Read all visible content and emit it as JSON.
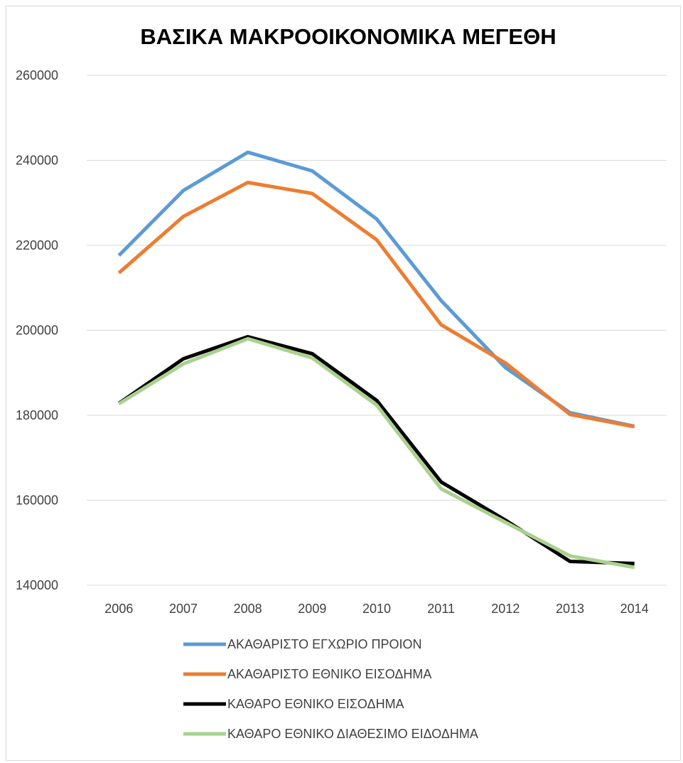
{
  "chart_data": {
    "type": "line",
    "title": "ΒΑΣΙΚΑ ΜΑΚΡΟΟΙΚΟΝΟΜΙΚΑ ΜΕΓΕΘΗ",
    "xlabel": "",
    "ylabel": "",
    "categories": [
      "2006",
      "2007",
      "2008",
      "2009",
      "2010",
      "2011",
      "2012",
      "2013",
      "2014"
    ],
    "ylim": [
      140000,
      260000
    ],
    "yticks": [
      260000,
      240000,
      220000,
      200000,
      180000,
      160000,
      140000
    ],
    "ytick_labels": [
      "260000",
      "240000",
      "220000",
      "200000",
      "180000",
      "160000",
      "140000"
    ],
    "grid": true,
    "legend_position": "bottom",
    "series": [
      {
        "name": "ΑΚΑΘΑΡΙΣΤΟ ΕΓΧΩΡΙΟ ΠΡΟΙΟΝ",
        "color": "#5b9bd5",
        "values": [
          217600,
          232900,
          241900,
          237500,
          226200,
          207000,
          191200,
          180600,
          177400
        ]
      },
      {
        "name": "ΑΚΑΘΑΡΙΣΤΟ ΕΘΝΙΚΟ ΕΙΣΟΔΗΜΑ",
        "color": "#ed7d31",
        "values": [
          213500,
          226800,
          234800,
          232200,
          221300,
          201300,
          192300,
          180200,
          177300
        ]
      },
      {
        "name": "ΚΑΘΑΡΟ ΕΘΝΙΚΟ ΕΙΣΟΔΗΜΑ",
        "color": "#000000",
        "values": [
          182800,
          193300,
          198500,
          194500,
          183500,
          164300,
          155300,
          145600,
          145100
        ]
      },
      {
        "name": "ΚΑΘΑΡΟ ΕΘΝΙΚΟ ΔΙΑΘΕΣΙΜΟ ΕΙΔΟΔΗΜΑ",
        "color": "#a9d18e",
        "values": [
          182700,
          192100,
          198000,
          193500,
          182400,
          162700,
          154800,
          146900,
          144200
        ]
      }
    ]
  }
}
